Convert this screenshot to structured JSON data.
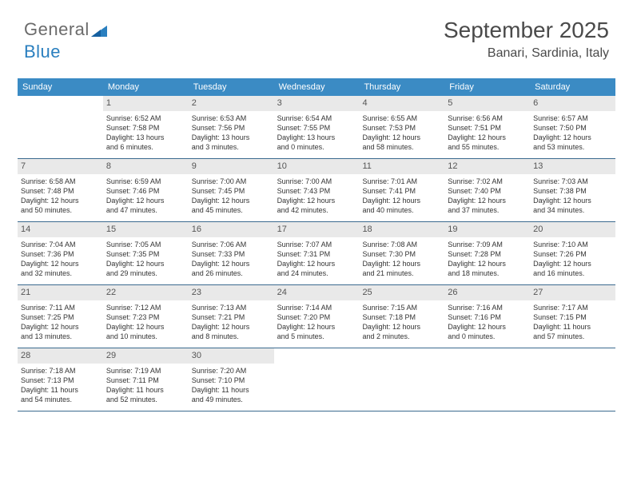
{
  "brand": {
    "part1": "General",
    "part2": "Blue"
  },
  "title": "September 2025",
  "location": "Banari, Sardinia, Italy",
  "colors": {
    "header_bg": "#3b8bc4",
    "header_text": "#ffffff",
    "daynum_bg": "#e9e9e9",
    "daynum_text": "#555555",
    "border": "#3b6a8f",
    "brand_gray": "#6b6b6b",
    "brand_blue": "#2a7fbf"
  },
  "day_headers": [
    "Sunday",
    "Monday",
    "Tuesday",
    "Wednesday",
    "Thursday",
    "Friday",
    "Saturday"
  ],
  "weeks": [
    [
      null,
      {
        "n": "1",
        "sr": "Sunrise: 6:52 AM",
        "ss": "Sunset: 7:58 PM",
        "d1": "Daylight: 13 hours",
        "d2": "and 6 minutes."
      },
      {
        "n": "2",
        "sr": "Sunrise: 6:53 AM",
        "ss": "Sunset: 7:56 PM",
        "d1": "Daylight: 13 hours",
        "d2": "and 3 minutes."
      },
      {
        "n": "3",
        "sr": "Sunrise: 6:54 AM",
        "ss": "Sunset: 7:55 PM",
        "d1": "Daylight: 13 hours",
        "d2": "and 0 minutes."
      },
      {
        "n": "4",
        "sr": "Sunrise: 6:55 AM",
        "ss": "Sunset: 7:53 PM",
        "d1": "Daylight: 12 hours",
        "d2": "and 58 minutes."
      },
      {
        "n": "5",
        "sr": "Sunrise: 6:56 AM",
        "ss": "Sunset: 7:51 PM",
        "d1": "Daylight: 12 hours",
        "d2": "and 55 minutes."
      },
      {
        "n": "6",
        "sr": "Sunrise: 6:57 AM",
        "ss": "Sunset: 7:50 PM",
        "d1": "Daylight: 12 hours",
        "d2": "and 53 minutes."
      }
    ],
    [
      {
        "n": "7",
        "sr": "Sunrise: 6:58 AM",
        "ss": "Sunset: 7:48 PM",
        "d1": "Daylight: 12 hours",
        "d2": "and 50 minutes."
      },
      {
        "n": "8",
        "sr": "Sunrise: 6:59 AM",
        "ss": "Sunset: 7:46 PM",
        "d1": "Daylight: 12 hours",
        "d2": "and 47 minutes."
      },
      {
        "n": "9",
        "sr": "Sunrise: 7:00 AM",
        "ss": "Sunset: 7:45 PM",
        "d1": "Daylight: 12 hours",
        "d2": "and 45 minutes."
      },
      {
        "n": "10",
        "sr": "Sunrise: 7:00 AM",
        "ss": "Sunset: 7:43 PM",
        "d1": "Daylight: 12 hours",
        "d2": "and 42 minutes."
      },
      {
        "n": "11",
        "sr": "Sunrise: 7:01 AM",
        "ss": "Sunset: 7:41 PM",
        "d1": "Daylight: 12 hours",
        "d2": "and 40 minutes."
      },
      {
        "n": "12",
        "sr": "Sunrise: 7:02 AM",
        "ss": "Sunset: 7:40 PM",
        "d1": "Daylight: 12 hours",
        "d2": "and 37 minutes."
      },
      {
        "n": "13",
        "sr": "Sunrise: 7:03 AM",
        "ss": "Sunset: 7:38 PM",
        "d1": "Daylight: 12 hours",
        "d2": "and 34 minutes."
      }
    ],
    [
      {
        "n": "14",
        "sr": "Sunrise: 7:04 AM",
        "ss": "Sunset: 7:36 PM",
        "d1": "Daylight: 12 hours",
        "d2": "and 32 minutes."
      },
      {
        "n": "15",
        "sr": "Sunrise: 7:05 AM",
        "ss": "Sunset: 7:35 PM",
        "d1": "Daylight: 12 hours",
        "d2": "and 29 minutes."
      },
      {
        "n": "16",
        "sr": "Sunrise: 7:06 AM",
        "ss": "Sunset: 7:33 PM",
        "d1": "Daylight: 12 hours",
        "d2": "and 26 minutes."
      },
      {
        "n": "17",
        "sr": "Sunrise: 7:07 AM",
        "ss": "Sunset: 7:31 PM",
        "d1": "Daylight: 12 hours",
        "d2": "and 24 minutes."
      },
      {
        "n": "18",
        "sr": "Sunrise: 7:08 AM",
        "ss": "Sunset: 7:30 PM",
        "d1": "Daylight: 12 hours",
        "d2": "and 21 minutes."
      },
      {
        "n": "19",
        "sr": "Sunrise: 7:09 AM",
        "ss": "Sunset: 7:28 PM",
        "d1": "Daylight: 12 hours",
        "d2": "and 18 minutes."
      },
      {
        "n": "20",
        "sr": "Sunrise: 7:10 AM",
        "ss": "Sunset: 7:26 PM",
        "d1": "Daylight: 12 hours",
        "d2": "and 16 minutes."
      }
    ],
    [
      {
        "n": "21",
        "sr": "Sunrise: 7:11 AM",
        "ss": "Sunset: 7:25 PM",
        "d1": "Daylight: 12 hours",
        "d2": "and 13 minutes."
      },
      {
        "n": "22",
        "sr": "Sunrise: 7:12 AM",
        "ss": "Sunset: 7:23 PM",
        "d1": "Daylight: 12 hours",
        "d2": "and 10 minutes."
      },
      {
        "n": "23",
        "sr": "Sunrise: 7:13 AM",
        "ss": "Sunset: 7:21 PM",
        "d1": "Daylight: 12 hours",
        "d2": "and 8 minutes."
      },
      {
        "n": "24",
        "sr": "Sunrise: 7:14 AM",
        "ss": "Sunset: 7:20 PM",
        "d1": "Daylight: 12 hours",
        "d2": "and 5 minutes."
      },
      {
        "n": "25",
        "sr": "Sunrise: 7:15 AM",
        "ss": "Sunset: 7:18 PM",
        "d1": "Daylight: 12 hours",
        "d2": "and 2 minutes."
      },
      {
        "n": "26",
        "sr": "Sunrise: 7:16 AM",
        "ss": "Sunset: 7:16 PM",
        "d1": "Daylight: 12 hours",
        "d2": "and 0 minutes."
      },
      {
        "n": "27",
        "sr": "Sunrise: 7:17 AM",
        "ss": "Sunset: 7:15 PM",
        "d1": "Daylight: 11 hours",
        "d2": "and 57 minutes."
      }
    ],
    [
      {
        "n": "28",
        "sr": "Sunrise: 7:18 AM",
        "ss": "Sunset: 7:13 PM",
        "d1": "Daylight: 11 hours",
        "d2": "and 54 minutes."
      },
      {
        "n": "29",
        "sr": "Sunrise: 7:19 AM",
        "ss": "Sunset: 7:11 PM",
        "d1": "Daylight: 11 hours",
        "d2": "and 52 minutes."
      },
      {
        "n": "30",
        "sr": "Sunrise: 7:20 AM",
        "ss": "Sunset: 7:10 PM",
        "d1": "Daylight: 11 hours",
        "d2": "and 49 minutes."
      },
      null,
      null,
      null,
      null
    ]
  ]
}
